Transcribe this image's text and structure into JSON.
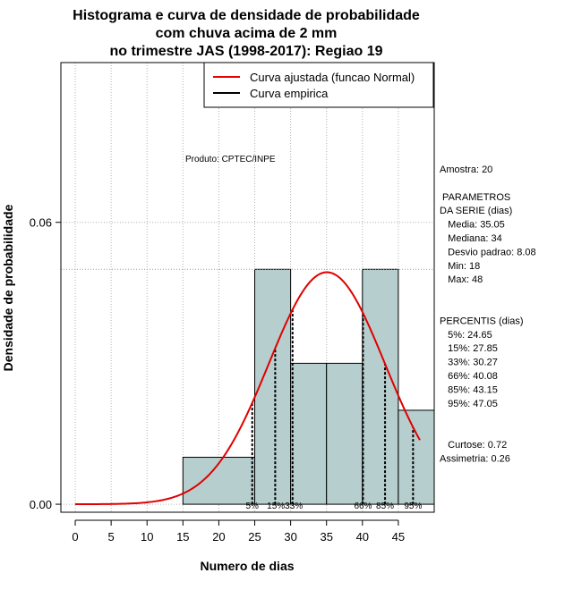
{
  "chart_data": {
    "type": "histogram",
    "title_lines": [
      "Histograma e curva de densidade de probabilidade",
      "com chuva acima de 2 mm",
      "no trimestre JAS (1998-2017): Regiao 19"
    ],
    "xlabel": "Numero de dias",
    "ylabel": "Densidade de probabilidade",
    "xlim": [
      -2,
      50
    ],
    "ylim": [
      -0.0017,
      0.094
    ],
    "x_ticks": [
      0,
      5,
      10,
      15,
      20,
      25,
      30,
      35,
      40,
      45
    ],
    "y_ticks": [
      0.0,
      0.06
    ],
    "y_tick_labels": [
      "0.00",
      "0.06"
    ],
    "grid": true,
    "bars": [
      {
        "x0": 15,
        "x1": 25,
        "density": 0.01
      },
      {
        "x0": 25,
        "x1": 30,
        "density": 0.05
      },
      {
        "x0": 30,
        "x1": 35,
        "density": 0.03
      },
      {
        "x0": 35,
        "x1": 40,
        "density": 0.03
      },
      {
        "x0": 40,
        "x1": 45,
        "density": 0.05
      },
      {
        "x0": 45,
        "x1": 50,
        "density": 0.02
      }
    ],
    "ref_line_y": 0.05,
    "normal_fit": {
      "mean": 35.05,
      "sd": 8.08,
      "x_from": 0,
      "x_to": 48
    },
    "percentile_lines": [
      24.65,
      27.85,
      30.27,
      40.08,
      43.15,
      47.05
    ],
    "percentile_labels": [
      {
        "text": "5%",
        "x": 24.65
      },
      {
        "text": "15%33%",
        "x": 29.2
      },
      {
        "text": "66%",
        "x": 40.08
      },
      {
        "text": "85%",
        "x": 43.15
      },
      {
        "text": "95%",
        "x": 47.05
      }
    ],
    "legend": {
      "position": "top-right",
      "entries": [
        {
          "label": "Curva ajustada (funcao Normal)",
          "color": "#e00000"
        },
        {
          "label": "Curva empirica",
          "color": "#000000"
        }
      ]
    },
    "annotation": "Produto: CPTEC/INPE",
    "colors": {
      "bar_fill": "#b7cece",
      "curve": "#e00000",
      "grid": "#b0b0b0"
    },
    "stats_lines": [
      "Amostra: 20",
      "",
      " PARAMETROS",
      "DA SERIE (dias)",
      "   Media: 35.05",
      "   Mediana: 34",
      "   Desvio padrao: 8.08",
      "   Min: 18",
      "   Max: 48",
      "",
      "",
      "PERCENTIS (dias)",
      "   5%: 24.65",
      "   15%: 27.85",
      "   33%: 30.27",
      "   66%: 40.08",
      "   85%: 43.15",
      "   95%: 47.05",
      "",
      "",
      "   Curtose: 0.72",
      "Assimetria: 0.26"
    ]
  }
}
